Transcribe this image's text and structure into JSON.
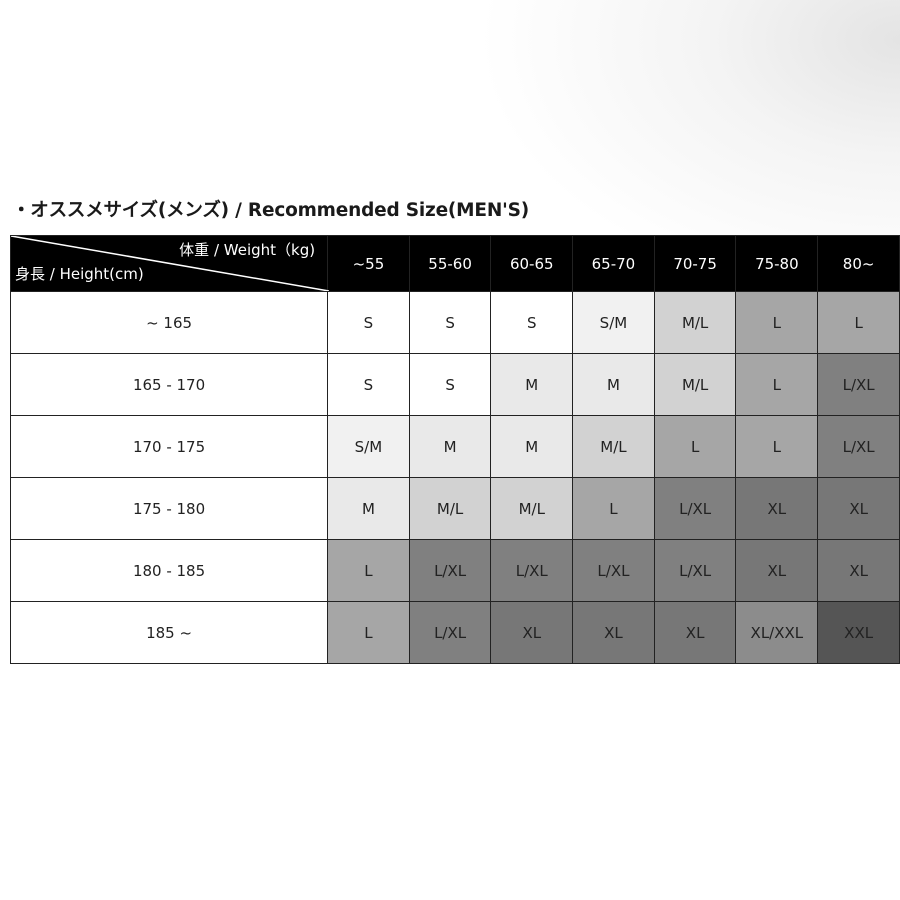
{
  "title": "・オススメサイズ(メンズ) / Recommended Size(MEN'S)",
  "header": {
    "weight_label": "体重 / Weight（kg)",
    "height_label": "身長 / Height(cm)",
    "weight_columns": [
      "~55",
      "55-60",
      "60-65",
      "65-70",
      "70-75",
      "75-80",
      "80~"
    ]
  },
  "size_colors": {
    "S": "#ffffff",
    "S/M": "#f1f1f1",
    "M": "#e9e9e9",
    "M/L": "#d2d2d2",
    "L": "#a6a6a6",
    "L/XL": "#808080",
    "XL": "#777777",
    "XL/XXL": "#8c8c8c",
    "XXL": "#555555"
  },
  "rows": [
    {
      "height": "~ 165",
      "sizes": [
        "S",
        "S",
        "S",
        "S/M",
        "M/L",
        "L",
        "L"
      ]
    },
    {
      "height": "165 - 170",
      "sizes": [
        "S",
        "S",
        "M",
        "M",
        "M/L",
        "L",
        "L/XL"
      ]
    },
    {
      "height": "170 - 175",
      "sizes": [
        "S/M",
        "M",
        "M",
        "M/L",
        "L",
        "L",
        "L/XL"
      ]
    },
    {
      "height": "175 - 180",
      "sizes": [
        "M",
        "M/L",
        "M/L",
        "L",
        "L/XL",
        "XL",
        "XL"
      ]
    },
    {
      "height": "180 - 185",
      "sizes": [
        "L",
        "L/XL",
        "L/XL",
        "L/XL",
        "L/XL",
        "XL",
        "XL"
      ]
    },
    {
      "height": "185 ~",
      "sizes": [
        "L",
        "L/XL",
        "XL",
        "XL",
        "XL",
        "XL/XXL",
        "XXL"
      ]
    }
  ]
}
